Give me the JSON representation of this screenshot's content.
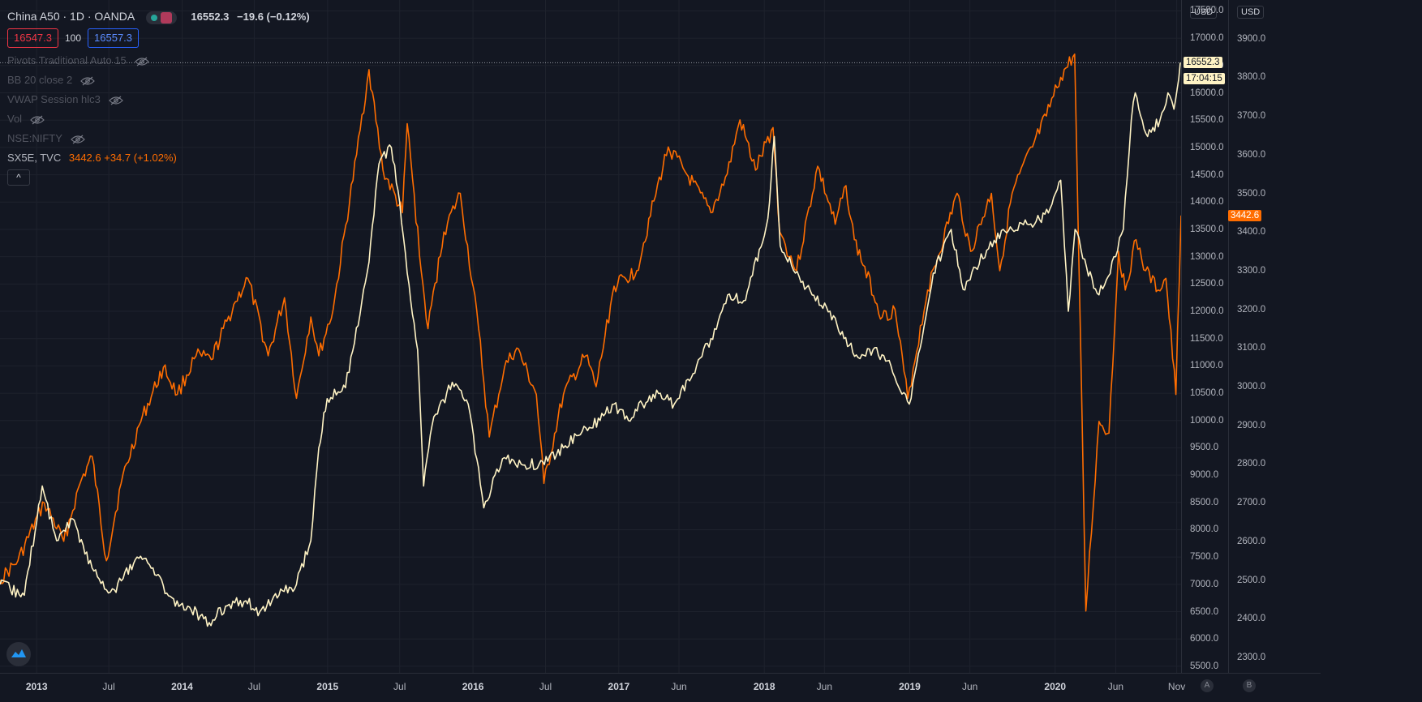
{
  "header": {
    "symbol": "China A50 · 1D · OANDA",
    "price": "16552.3",
    "change": "−19.6 (−0.12%)",
    "bid": "16547.3",
    "spread": "100",
    "ask": "16557.3"
  },
  "indicators": [
    {
      "label": "Pivots Traditional Auto 15"
    },
    {
      "label": "BB 20 close 2"
    },
    {
      "label": "VWAP Session hlc3"
    },
    {
      "label": "Vol"
    },
    {
      "label": "NSE:NIFTY"
    }
  ],
  "compare": {
    "label": "SX5E, TVC",
    "value": "3442.6 +34.7 (+1.02%)"
  },
  "collapse_glyph": "^",
  "scales": {
    "left_currency": "USD",
    "right_currency": "USD",
    "main_price_label": "16552.3",
    "countdown_label": "17:04:15",
    "compare_price_label": "3442.6"
  },
  "bottom_corner": {
    "auto": "A",
    "log": "B"
  },
  "colors": {
    "background": "#131722",
    "main_series": "#fff3c4",
    "compare_series": "#ff6d00",
    "grid": "#1e222d",
    "text": "#b2b5be"
  },
  "chart_data": {
    "type": "line",
    "x_tick_labels": [
      "2013",
      "Jul",
      "2014",
      "Jul",
      "2015",
      "Jul",
      "2016",
      "Jul",
      "2017",
      "Jun",
      "2018",
      "Jun",
      "2019",
      "Jun",
      "2020",
      "Jun",
      "Nov"
    ],
    "xlim": [
      "2012-10-01",
      "2020-11-12"
    ],
    "left_axis": {
      "ticks": [
        5500,
        6000,
        6500,
        7000,
        7500,
        8000,
        8500,
        9000,
        9500,
        10000,
        10500,
        11000,
        11500,
        12000,
        12500,
        13000,
        13500,
        14000,
        14500,
        15000,
        15500,
        16000,
        16500,
        17000,
        17500
      ],
      "tick_labels": [
        "5500.0",
        "6000.0",
        "6500.0",
        "7000.0",
        "7500.0",
        "8000.0",
        "8500.0",
        "9000.0",
        "9500.0",
        "10000.0",
        "10500.0",
        "11000.0",
        "11500.0",
        "12000.0",
        "12500.0",
        "13000.0",
        "13500.0",
        "14000.0",
        "14500.0",
        "15000.0",
        "15500.0",
        "16000.0",
        "16500.0",
        "17000.0",
        "17500.0"
      ],
      "ylim": [
        5380,
        17700
      ]
    },
    "right_axis": {
      "ticks": [
        2300,
        2400,
        2500,
        2600,
        2700,
        2800,
        2900,
        3000,
        3100,
        3200,
        3300,
        3400,
        3500,
        3600,
        3700,
        3800,
        3900
      ],
      "tick_labels": [
        "2300.0",
        "2400.0",
        "2500.0",
        "2600.0",
        "2700.0",
        "2800.0",
        "2900.0",
        "3000.0",
        "3100.0",
        "3200.0",
        "3300.0",
        "3400.0",
        "3500.0",
        "3600.0",
        "3700.0",
        "3800.0",
        "3900.0"
      ],
      "ylim": [
        2260,
        4000
      ]
    },
    "grid": true,
    "series": [
      {
        "name": "China A50",
        "axis": "left",
        "x": [
          "2012-10-01",
          "2012-12-01",
          "2013-01-15",
          "2013-02-20",
          "2013-04-01",
          "2013-05-20",
          "2013-06-25",
          "2013-07-15",
          "2013-09-10",
          "2013-10-20",
          "2013-12-15",
          "2014-01-15",
          "2014-03-10",
          "2014-04-20",
          "2014-06-10",
          "2014-07-15",
          "2014-09-01",
          "2014-10-15",
          "2014-11-20",
          "2014-12-10",
          "2014-12-31",
          "2015-02-15",
          "2015-04-15",
          "2015-05-10",
          "2015-06-10",
          "2015-07-01",
          "2015-07-20",
          "2015-08-15",
          "2015-08-30",
          "2015-09-20",
          "2015-11-10",
          "2015-12-20",
          "2016-01-28",
          "2016-03-15",
          "2016-05-01",
          "2016-06-15",
          "2016-08-15",
          "2016-10-01",
          "2016-11-15",
          "2016-12-20",
          "2017-01-25",
          "2017-03-01",
          "2017-04-15",
          "2017-05-20",
          "2017-07-15",
          "2017-08-20",
          "2017-10-01",
          "2017-11-15",
          "2018-01-10",
          "2018-01-26",
          "2018-02-10",
          "2018-03-20",
          "2018-05-01",
          "2018-06-15",
          "2018-07-20",
          "2018-08-20",
          "2018-10-01",
          "2018-11-15",
          "2018-12-31",
          "2019-02-01",
          "2019-03-01",
          "2019-04-15",
          "2019-05-15",
          "2019-06-15",
          "2019-08-01",
          "2019-09-15",
          "2019-11-01",
          "2019-12-15",
          "2020-01-15",
          "2020-02-03",
          "2020-02-20",
          "2020-03-20",
          "2020-04-20",
          "2020-06-01",
          "2020-06-20",
          "2020-07-10",
          "2020-07-20",
          "2020-08-20",
          "2020-09-20",
          "2020-10-10",
          "2020-10-25",
          "2020-11-10"
        ],
        "values": [
          7000,
          6800,
          8800,
          7800,
          8200,
          7300,
          6900,
          6900,
          7500,
          7300,
          6600,
          6600,
          6300,
          6600,
          6700,
          6500,
          6800,
          7000,
          7800,
          9500,
          10400,
          10600,
          12900,
          14700,
          15000,
          14000,
          12700,
          11300,
          8800,
          9900,
          10700,
          10300,
          8400,
          9300,
          9200,
          9200,
          9500,
          9800,
          10000,
          10300,
          10000,
          10300,
          10500,
          10300,
          11000,
          11500,
          12300,
          12200,
          13700,
          15200,
          13200,
          12700,
          12300,
          12000,
          11500,
          11200,
          11300,
          11000,
          10300,
          11500,
          12700,
          13500,
          12400,
          12800,
          13300,
          13500,
          13600,
          13800,
          14400,
          12000,
          13500,
          12800,
          12300,
          13000,
          13500,
          15500,
          16000,
          15200,
          15500,
          16000,
          15700,
          16552.3
        ]
      },
      {
        "name": "SX5E, TVC",
        "axis": "right",
        "x": [
          "2012-10-01",
          "2012-11-15",
          "2013-01-20",
          "2013-03-10",
          "2013-04-20",
          "2013-05-20",
          "2013-06-25",
          "2013-08-01",
          "2013-09-15",
          "2013-11-15",
          "2013-12-20",
          "2014-02-05",
          "2014-03-15",
          "2014-05-15",
          "2014-06-15",
          "2014-08-05",
          "2014-09-15",
          "2014-10-15",
          "2014-11-20",
          "2014-12-10",
          "2015-01-15",
          "2015-03-15",
          "2015-04-15",
          "2015-05-20",
          "2015-07-08",
          "2015-07-20",
          "2015-08-24",
          "2015-09-10",
          "2015-10-20",
          "2015-11-30",
          "2016-01-15",
          "2016-02-11",
          "2016-03-20",
          "2016-04-20",
          "2016-06-08",
          "2016-06-27",
          "2016-08-15",
          "2016-10-10",
          "2016-11-05",
          "2016-12-20",
          "2017-02-15",
          "2017-03-30",
          "2017-05-05",
          "2017-06-20",
          "2017-08-20",
          "2017-09-30",
          "2017-11-01",
          "2017-12-10",
          "2018-01-23",
          "2018-02-09",
          "2018-03-23",
          "2018-05-15",
          "2018-06-28",
          "2018-07-25",
          "2018-08-15",
          "2018-10-24",
          "2018-11-25",
          "2018-12-27",
          "2019-02-15",
          "2019-04-30",
          "2019-06-03",
          "2019-07-25",
          "2019-08-15",
          "2019-09-15",
          "2019-11-05",
          "2019-12-10",
          "2020-01-15",
          "2020-02-19",
          "2020-03-18",
          "2020-04-20",
          "2020-05-15",
          "2020-06-08",
          "2020-06-25",
          "2020-07-22",
          "2020-08-15",
          "2020-09-15",
          "2020-10-05",
          "2020-10-30",
          "2020-11-12"
        ],
        "values": [
          2500,
          2550,
          2700,
          2600,
          2750,
          2820,
          2550,
          2750,
          2900,
          3050,
          2980,
          3080,
          3070,
          3220,
          3280,
          3080,
          3230,
          2970,
          3180,
          3080,
          3200,
          3600,
          3820,
          3560,
          3450,
          3680,
          3300,
          3150,
          3400,
          3500,
          3150,
          2870,
          3050,
          3100,
          2980,
          2750,
          2980,
          3080,
          3000,
          3260,
          3300,
          3480,
          3620,
          3550,
          3450,
          3550,
          3690,
          3560,
          3670,
          3400,
          3300,
          3570,
          3420,
          3520,
          3380,
          3180,
          3200,
          2970,
          3250,
          3500,
          3350,
          3500,
          3300,
          3500,
          3620,
          3700,
          3800,
          3860,
          2420,
          2910,
          2880,
          3350,
          3250,
          3380,
          3300,
          3250,
          3280,
          2980,
          3442.6
        ]
      }
    ]
  }
}
